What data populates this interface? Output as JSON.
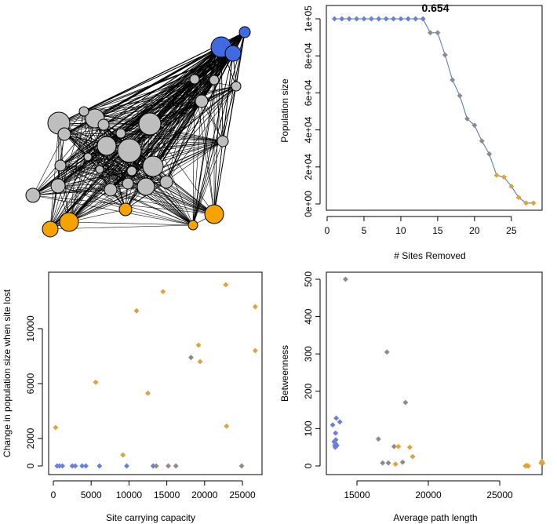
{
  "chart_data": [
    {
      "type": "network",
      "title": "",
      "node_groups": [
        "blue",
        "grey",
        "orange"
      ],
      "colors": {
        "blue": "#4169e1",
        "grey": "#bebebe",
        "orange": "#f5a300"
      }
    },
    {
      "type": "line",
      "title": "0.654",
      "xlabel": "# Sites Removed",
      "ylabel": "Population size",
      "xlim": [
        0,
        28
      ],
      "ylim": [
        0,
        100000
      ],
      "x_ticks": [
        "0",
        "5",
        "10",
        "15",
        "20",
        "25"
      ],
      "x_tick_values": [
        0,
        5,
        10,
        15,
        20,
        25
      ],
      "y_ticks": [
        "0e+00",
        "2e+04",
        "4e+04",
        "6e+04",
        "8e+04",
        "1e+05"
      ],
      "y_tick_values": [
        0,
        20000,
        40000,
        60000,
        80000,
        100000
      ],
      "line_color": "#4472c4",
      "x": [
        1,
        2,
        3,
        4,
        5,
        6,
        7,
        8,
        9,
        10,
        11,
        12,
        13,
        14,
        15,
        16,
        17,
        18,
        19,
        20,
        21,
        22,
        23,
        24,
        25,
        26,
        27,
        28
      ],
      "y": [
        100000,
        100000,
        100000,
        100000,
        100000,
        100000,
        100000,
        100000,
        100000,
        100000,
        100000,
        100000,
        100000,
        92500,
        92500,
        80500,
        67000,
        58500,
        46000,
        42500,
        34000,
        27000,
        15500,
        14500,
        9500,
        3500,
        500,
        500
      ],
      "colors": [
        "blue",
        "blue",
        "blue",
        "blue",
        "blue",
        "blue",
        "blue",
        "blue",
        "blue",
        "blue",
        "blue",
        "blue",
        "blue",
        "grey",
        "grey",
        "grey",
        "grey",
        "grey",
        "grey",
        "grey",
        "grey",
        "grey",
        "orange",
        "orange",
        "orange",
        "orange",
        "orange",
        "orange"
      ]
    },
    {
      "type": "scatter",
      "xlabel": "Site carrying capacity",
      "ylabel": "Change in population size when site lost",
      "xlim": [
        0,
        26500
      ],
      "ylim": [
        0,
        13800
      ],
      "x_ticks": [
        "0",
        "5000",
        "10000",
        "15000",
        "20000",
        "25000"
      ],
      "x_tick_values": [
        0,
        5000,
        10000,
        15000,
        20000,
        25000
      ],
      "y_ticks": [
        "0",
        "2000",
        "6000",
        "10000"
      ],
      "y_tick_values": [
        0,
        2000,
        6000,
        10000
      ],
      "points": [
        {
          "x": 300,
          "y": 2800,
          "c": "orange"
        },
        {
          "x": 500,
          "y": 0,
          "c": "blue"
        },
        {
          "x": 800,
          "y": 0,
          "c": "blue"
        },
        {
          "x": 1200,
          "y": 0,
          "c": "blue"
        },
        {
          "x": 2500,
          "y": 0,
          "c": "blue"
        },
        {
          "x": 2900,
          "y": 0,
          "c": "blue"
        },
        {
          "x": 3800,
          "y": 0,
          "c": "blue"
        },
        {
          "x": 4300,
          "y": 0,
          "c": "blue"
        },
        {
          "x": 5600,
          "y": 6100,
          "c": "orange"
        },
        {
          "x": 6100,
          "y": 0,
          "c": "blue"
        },
        {
          "x": 9200,
          "y": 800,
          "c": "orange"
        },
        {
          "x": 9700,
          "y": 0,
          "c": "blue"
        },
        {
          "x": 11000,
          "y": 11300,
          "c": "orange"
        },
        {
          "x": 12500,
          "y": 5300,
          "c": "orange"
        },
        {
          "x": 13200,
          "y": 0,
          "c": "blue"
        },
        {
          "x": 13600,
          "y": 0,
          "c": "grey"
        },
        {
          "x": 14500,
          "y": 12700,
          "c": "orange"
        },
        {
          "x": 15200,
          "y": 0,
          "c": "grey"
        },
        {
          "x": 16200,
          "y": 0,
          "c": "grey"
        },
        {
          "x": 18200,
          "y": 7900,
          "c": "grey"
        },
        {
          "x": 19200,
          "y": 8800,
          "c": "orange"
        },
        {
          "x": 19400,
          "y": 7600,
          "c": "orange"
        },
        {
          "x": 22800,
          "y": 13200,
          "c": "orange"
        },
        {
          "x": 22900,
          "y": 2900,
          "c": "orange"
        },
        {
          "x": 24900,
          "y": 0,
          "c": "grey"
        },
        {
          "x": 26700,
          "y": 11600,
          "c": "orange"
        },
        {
          "x": 26700,
          "y": 8400,
          "c": "orange"
        }
      ]
    },
    {
      "type": "scatter",
      "xlabel": "Average path length",
      "ylabel": "Betweenness",
      "xlim": [
        13000,
        28200
      ],
      "ylim": [
        -10,
        515
      ],
      "x_ticks": [
        "15000",
        "20000",
        "25000"
      ],
      "x_tick_values": [
        15000,
        20000,
        25000
      ],
      "y_ticks": [
        "0",
        "100",
        "200",
        "300",
        "400",
        "500"
      ],
      "y_tick_values": [
        0,
        100,
        200,
        300,
        400,
        500
      ],
      "points": [
        {
          "x": 13300,
          "y": 110,
          "c": "blue"
        },
        {
          "x": 13400,
          "y": 65,
          "c": "blue"
        },
        {
          "x": 13450,
          "y": 55,
          "c": "blue"
        },
        {
          "x": 13480,
          "y": 50,
          "c": "blue"
        },
        {
          "x": 13500,
          "y": 60,
          "c": "blue"
        },
        {
          "x": 13520,
          "y": 70,
          "c": "blue"
        },
        {
          "x": 13500,
          "y": 88,
          "c": "blue"
        },
        {
          "x": 13550,
          "y": 128,
          "c": "blue"
        },
        {
          "x": 13600,
          "y": 55,
          "c": "blue"
        },
        {
          "x": 13800,
          "y": 118,
          "c": "blue"
        },
        {
          "x": 14200,
          "y": 500,
          "c": "grey"
        },
        {
          "x": 16500,
          "y": 72,
          "c": "grey"
        },
        {
          "x": 16800,
          "y": 8,
          "c": "grey"
        },
        {
          "x": 17100,
          "y": 305,
          "c": "grey"
        },
        {
          "x": 17200,
          "y": 8,
          "c": "grey"
        },
        {
          "x": 17600,
          "y": 52,
          "c": "grey"
        },
        {
          "x": 17700,
          "y": 5,
          "c": "orange"
        },
        {
          "x": 17900,
          "y": 52,
          "c": "orange"
        },
        {
          "x": 18200,
          "y": 10,
          "c": "grey"
        },
        {
          "x": 18400,
          "y": 170,
          "c": "grey"
        },
        {
          "x": 18700,
          "y": 50,
          "c": "orange"
        },
        {
          "x": 18900,
          "y": 25,
          "c": "orange"
        },
        {
          "x": 26800,
          "y": 0,
          "c": "orange"
        },
        {
          "x": 26900,
          "y": 1,
          "c": "orange"
        },
        {
          "x": 27000,
          "y": 0,
          "c": "orange"
        },
        {
          "x": 27900,
          "y": 8,
          "c": "orange"
        },
        {
          "x": 27950,
          "y": 12,
          "c": "orange"
        },
        {
          "x": 28000,
          "y": 7,
          "c": "orange"
        }
      ]
    }
  ],
  "marker_colors": {
    "blue": "#6a7fd6",
    "grey": "#8f8a85",
    "orange": "#e0a23a"
  }
}
